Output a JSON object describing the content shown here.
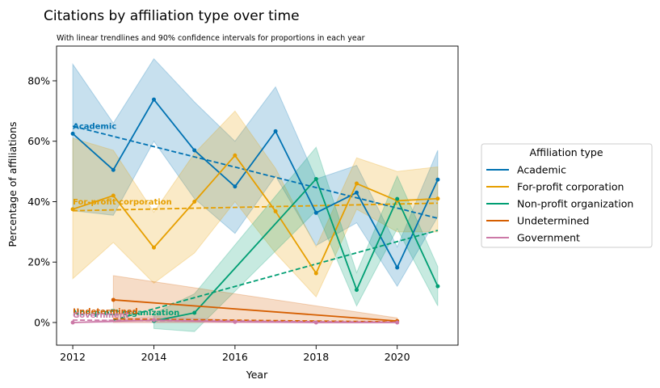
{
  "chart_data": {
    "type": "line",
    "title": "Citations by affiliation type over time",
    "subtitle": "With linear trendlines and 90% confidence intervals for proportions in each year",
    "xlabel": "Year",
    "ylabel": "Percentage of affiliations",
    "xlim": [
      2011.6,
      2021.5
    ],
    "ylim": [
      -7.5,
      91.5
    ],
    "xticks": [
      2012,
      2014,
      2016,
      2018,
      2020
    ],
    "xtick_labels": [
      "2012",
      "2014",
      "2016",
      "2018",
      "2020"
    ],
    "yticks": [
      0,
      20,
      40,
      60,
      80
    ],
    "ytick_labels": [
      "0%",
      "20%",
      "40%",
      "60%",
      "80%"
    ],
    "grid": false,
    "legend": {
      "title": "Affiliation type",
      "position": "right"
    },
    "series": [
      {
        "name": "Academic",
        "color": "#0072b2",
        "x": [
          2012,
          2013,
          2014,
          2015,
          2016,
          2017,
          2018,
          2019,
          2020,
          2021
        ],
        "y": [
          62.5,
          50.5,
          73.8,
          57.0,
          45.0,
          63.3,
          36.3,
          43.0,
          18.2,
          47.3
        ],
        "ci_lower": [
          37.0,
          35.5,
          60.0,
          41.0,
          29.5,
          48.5,
          25.5,
          33.0,
          12.0,
          35.0
        ],
        "ci_upper": [
          85.5,
          66.0,
          87.3,
          73.0,
          60.0,
          78.0,
          47.5,
          52.0,
          25.0,
          57.0
        ],
        "trend": [
          65.0,
          34.5
        ],
        "inline_label": "Academic"
      },
      {
        "name": "For-profit corporation",
        "color": "#e69f00",
        "x": [
          2012,
          2013,
          2014,
          2015,
          2016,
          2017,
          2018,
          2019,
          2020,
          2021
        ],
        "y": [
          37.5,
          42.0,
          24.8,
          40.0,
          55.3,
          36.8,
          16.3,
          46.0,
          40.3,
          41.0
        ],
        "ci_lower": [
          14.5,
          26.5,
          13.0,
          23.0,
          40.0,
          23.0,
          8.5,
          37.5,
          30.0,
          30.0
        ],
        "ci_upper": [
          61.0,
          57.0,
          36.5,
          56.0,
          70.0,
          51.0,
          25.0,
          54.5,
          50.0,
          51.5
        ],
        "trend": [
          37.0,
          39.5
        ],
        "inline_label": "For-profit corporation"
      },
      {
        "name": "Non-profit organization",
        "color": "#009e73",
        "x": [
          2014,
          2015,
          2018,
          2019,
          2020,
          2021
        ],
        "y": [
          0.5,
          3.2,
          47.5,
          10.8,
          40.9,
          12.0
        ],
        "ci_lower": [
          -2.0,
          -3.0,
          37.0,
          5.5,
          31.0,
          5.5
        ],
        "ci_upper": [
          3.0,
          9.5,
          58.0,
          16.5,
          48.5,
          18.5
        ],
        "trend_x": [
          2013,
          2021
        ],
        "trend": [
          0.8,
          30.5
        ],
        "inline_label": "Non-profit organization"
      },
      {
        "name": "Undetermined",
        "color": "#d55e00",
        "x": [
          2013,
          2020
        ],
        "y": [
          7.5,
          0.5
        ],
        "ci_lower": [
          0.0,
          0.0
        ],
        "ci_upper": [
          15.5,
          1.5
        ],
        "trend_x": [
          2013,
          2020
        ],
        "trend": [
          1.2,
          0.2
        ],
        "inline_label": "Undetermined"
      },
      {
        "name": "Government",
        "color": "#cc79a7",
        "x": [
          2012,
          2014,
          2016,
          2018,
          2020
        ],
        "y": [
          0.0,
          0.8,
          0.2,
          0.0,
          0.0
        ],
        "ci_lower": [
          0.0,
          0.0,
          0.0,
          0.0,
          0.0
        ],
        "ci_upper": [
          0.0,
          2.0,
          0.8,
          0.0,
          0.0
        ],
        "trend_x": [
          2012,
          2020
        ],
        "trend": [
          0.8,
          0.1
        ],
        "inline_label": "Government"
      }
    ]
  }
}
